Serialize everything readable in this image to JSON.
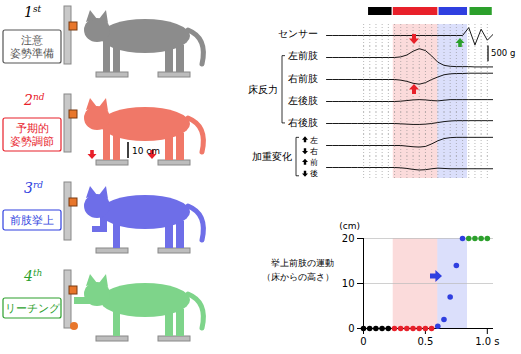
{
  "diagram": {
    "stages": [
      {
        "ordinal": "1st",
        "label": [
          "注意",
          "姿勢準備"
        ],
        "color": "#555555",
        "fill": "#8c8c8c"
      },
      {
        "ordinal": "2nd",
        "label": [
          "予期的",
          "姿勢調節"
        ],
        "color": "#e8202a",
        "fill": "#f07868"
      },
      {
        "ordinal": "3rd",
        "label": [
          "前肢挙上"
        ],
        "color": "#2f3fe0",
        "fill": "#6e6ee8"
      },
      {
        "ordinal": "4th",
        "label": [
          "リーチング"
        ],
        "color": "#2ca02c",
        "fill": "#7ed48a"
      }
    ],
    "scale_bar": "10 cm"
  },
  "chart_data": [
    {
      "type": "line",
      "x": [
        -0.3,
        -0.25,
        -0.2,
        -0.15,
        -0.1,
        -0.05,
        0,
        0.05,
        0.1,
        0.15,
        0.2,
        0.25,
        0.3,
        0.35,
        0.4,
        0.45,
        0.5,
        0.55,
        0.6,
        0.65,
        0.7,
        0.75,
        0.8,
        0.85,
        0.9,
        0.95,
        1.0,
        1.05
      ],
      "xlim": [
        -0.3,
        1.05
      ],
      "xticks": [
        0,
        0.05,
        0.1,
        0.15,
        0.2,
        0.25,
        0.3,
        0.35,
        0.4,
        0.45,
        0.5,
        0.55,
        0.6,
        0.65,
        0.7,
        0.75,
        0.8,
        0.85,
        0.9,
        0.95,
        1
      ],
      "tick_labels": false,
      "grid": true,
      "ylim": [
        -350,
        350
      ],
      "scale_bar": {
        "value": 500,
        "label": "500 g"
      },
      "phases": [
        {
          "start": 0.04,
          "end": 0.23,
          "color": "#000000"
        },
        {
          "start": 0.24,
          "end": 0.6,
          "color": "#e8202a"
        },
        {
          "start": 0.61,
          "end": 0.84,
          "color": "#2f3fe0"
        },
        {
          "start": 0.86,
          "end": 1.04,
          "color": "#2ca02c"
        }
      ],
      "shaded": [
        {
          "start": 0.24,
          "end": 0.6,
          "color": "#f07070"
        },
        {
          "start": 0.6,
          "end": 0.84,
          "color": "#7080f0"
        }
      ],
      "series": [
        {
          "name": "センサー",
          "values": [
            0,
            0,
            0,
            0,
            0,
            0,
            0,
            0,
            0,
            0,
            0,
            0,
            0,
            0,
            0,
            0,
            0,
            0,
            0,
            0,
            0,
            0,
            0,
            250,
            -300,
            200,
            -150,
            50
          ]
        },
        {
          "name": "左前肢",
          "group": "床反力",
          "values": [
            0,
            0,
            0,
            0,
            0,
            0,
            0,
            0,
            0,
            0,
            0,
            0,
            20,
            80,
            200,
            280,
            220,
            50,
            -150,
            -250,
            -280,
            -290,
            -290,
            -290,
            -300,
            -300,
            -300,
            -300
          ]
        },
        {
          "name": "右前肢",
          "group": "床反力",
          "values": [
            0,
            0,
            0,
            0,
            0,
            0,
            0,
            0,
            0,
            0,
            0,
            0,
            -20,
            -60,
            -120,
            -150,
            -100,
            0,
            80,
            150,
            180,
            190,
            190,
            200,
            200,
            200,
            200,
            200
          ]
        },
        {
          "name": "左後肢",
          "group": "床反力",
          "values": [
            0,
            0,
            0,
            0,
            0,
            0,
            0,
            0,
            0,
            0,
            0,
            0,
            10,
            30,
            50,
            60,
            50,
            30,
            20,
            40,
            60,
            60,
            60,
            60,
            60,
            60,
            60,
            60
          ]
        },
        {
          "name": "右後肢",
          "group": "床反力",
          "values": [
            0,
            0,
            0,
            0,
            0,
            0,
            0,
            0,
            0,
            0,
            0,
            0,
            -10,
            -20,
            -30,
            -30,
            -20,
            0,
            30,
            60,
            80,
            90,
            90,
            90,
            90,
            90,
            90,
            90
          ]
        },
        {
          "group": "加重変化",
          "up": "左",
          "down": "右",
          "values": [
            0,
            0,
            0,
            0,
            0,
            0,
            0,
            0,
            0,
            0,
            0,
            0,
            0,
            -20,
            -40,
            -50,
            -30,
            50,
            150,
            220,
            250,
            260,
            260,
            260,
            260,
            260,
            260,
            260
          ]
        },
        {
          "group": "加重変化",
          "up": "前",
          "down": "後",
          "values": [
            0,
            0,
            0,
            0,
            0,
            0,
            0,
            0,
            0,
            0,
            0,
            0,
            -10,
            -30,
            -60,
            -80,
            -70,
            -40,
            -20,
            -30,
            -40,
            -40,
            -40,
            -40,
            -40,
            -40,
            -40,
            -40
          ]
        }
      ]
    },
    {
      "type": "scatter",
      "title": [
        "挙上前肢の運動",
        "（床からの高さ）"
      ],
      "ylabel": "(cm)",
      "x": [
        0,
        0.05,
        0.1,
        0.15,
        0.2,
        0.25,
        0.3,
        0.35,
        0.4,
        0.45,
        0.5,
        0.55,
        0.6,
        0.65,
        0.7,
        0.75,
        0.8,
        0.85,
        0.9,
        0.95,
        1.0
      ],
      "values": [
        0,
        0,
        0,
        0,
        0,
        0,
        0,
        0,
        0,
        0,
        0,
        0,
        0.5,
        2,
        7,
        14,
        20,
        20,
        20,
        20,
        20
      ],
      "colors": [
        "#000000",
        "#000000",
        "#000000",
        "#000000",
        "#000000",
        "#e8202a",
        "#e8202a",
        "#e8202a",
        "#e8202a",
        "#e8202a",
        "#e8202a",
        "#e8202a",
        "#2f3fe0",
        "#2f3fe0",
        "#2f3fe0",
        "#2f3fe0",
        "#2f3fe0",
        "#2ca02c",
        "#2ca02c",
        "#2ca02c",
        "#2ca02c"
      ],
      "xlim": [
        0,
        1.05
      ],
      "ylim": [
        0,
        20
      ],
      "xticks": [
        0,
        0.5,
        {
          "value": 1,
          "label": "1.0 s"
        }
      ],
      "yticks": [
        0,
        10,
        20
      ],
      "grid": true,
      "shaded": [
        {
          "start": 0.24,
          "end": 0.6,
          "color": "#f07070"
        },
        {
          "start": 0.6,
          "end": 0.84,
          "color": "#7080f0"
        }
      ]
    }
  ]
}
